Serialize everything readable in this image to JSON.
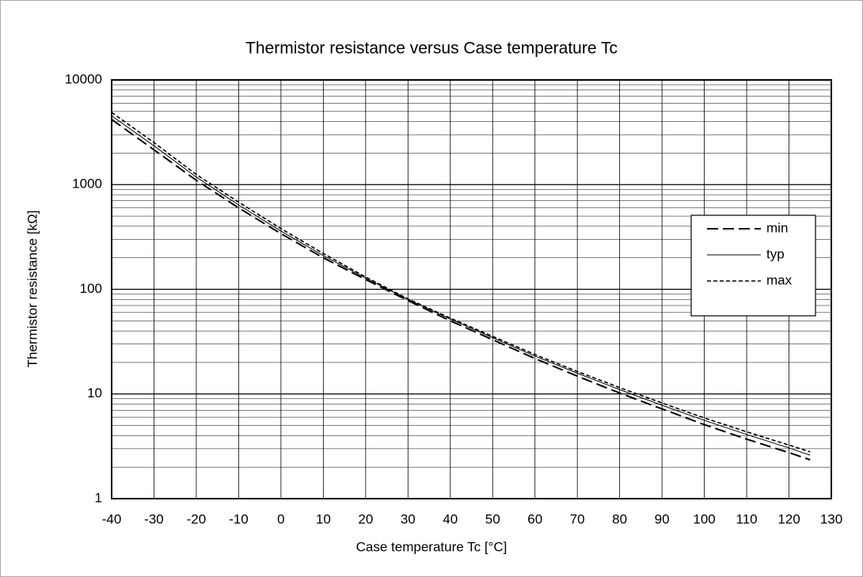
{
  "chart_data": {
    "type": "line",
    "title": "Thermistor resistance versus Case temperature Tc",
    "x_label": "Case temperature Tc [°C]",
    "y_label": "Thermistor resistance  [kΩ]",
    "x": [
      -40,
      -30,
      -20,
      -10,
      0,
      10,
      20,
      30,
      40,
      50,
      60,
      70,
      80,
      90,
      100,
      110,
      120,
      125
    ],
    "series": [
      {
        "name": "min",
        "color": "#000000",
        "dash": "14,6",
        "width": 2,
        "values": [
          4200,
          2150,
          1100,
          600,
          340,
          200,
          124,
          78,
          50,
          33,
          21.8,
          14.8,
          10.2,
          7.2,
          5.1,
          3.7,
          2.75,
          2.35
        ]
      },
      {
        "name": "typ",
        "color": "#000000",
        "dash": "none",
        "width": 1,
        "values": [
          4550,
          2350,
          1180,
          640,
          360,
          210,
          128,
          80,
          52,
          34.5,
          23,
          15.8,
          11,
          7.8,
          5.6,
          4.1,
          3.05,
          2.6
        ]
      },
      {
        "name": "max",
        "color": "#000000",
        "dash": "5,3",
        "width": 1.6,
        "values": [
          4900,
          2520,
          1250,
          680,
          380,
          220,
          131,
          81,
          53,
          35.5,
          23.8,
          16.4,
          11.5,
          8.2,
          5.9,
          4.35,
          3.25,
          2.8
        ]
      }
    ],
    "xlim": [
      -40,
      130
    ],
    "xticks": [
      -40,
      -30,
      -20,
      -10,
      0,
      10,
      20,
      30,
      40,
      50,
      60,
      70,
      80,
      90,
      100,
      110,
      120,
      130
    ],
    "ylim": [
      1,
      10000
    ],
    "yticks": [
      1,
      10,
      100,
      1000,
      10000
    ],
    "log_y": true,
    "grid": true,
    "minor_grid": true,
    "legend": "right"
  }
}
